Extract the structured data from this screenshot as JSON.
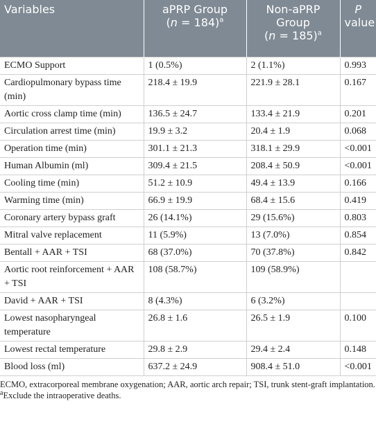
{
  "header": [
    [
      "Variables"
    ],
    [
      "aPRP Group",
      "(",
      "n",
      " = 184)",
      "a"
    ],
    [
      "Non-aPRP",
      "Group",
      "(",
      "n",
      " = 185)",
      "a"
    ],
    [
      "P",
      "value"
    ]
  ],
  "rows": [
    [
      "ECMO Support",
      "1 (0.5%)",
      "2 (1.1%)",
      "0.993"
    ],
    [
      "Cardiopulmonary bypass time (min)",
      "218.4 ± 19.9",
      "221.9 ± 28.1",
      "0.167"
    ],
    [
      "Aortic cross clamp time (min)",
      "136.5 ± 24.7",
      "133.4 ± 21.9",
      "0.201"
    ],
    [
      "Circulation arrest time (min)",
      "19.9 ± 3.2",
      "20.4 ± 1.9",
      "0.068"
    ],
    [
      "Operation time (min)",
      "301.1 ± 21.3",
      "318.1 ± 29.9",
      "<0.001"
    ],
    [
      "Human Albumin (ml)",
      "309.4 ± 21.5",
      "208.4 ± 50.9",
      "<0.001"
    ],
    [
      "Cooling time (min)",
      "51.2 ± 10.9",
      "49.4 ± 13.9",
      "0.166"
    ],
    [
      "Warming time (min)",
      "66.9 ± 19.9",
      "68.4 ± 15.6",
      "0.419"
    ],
    [
      "Coronary artery bypass graft",
      "26 (14.1%)",
      "29 (15.6%)",
      "0.803"
    ],
    [
      "Mitral valve replacement",
      "11 (5.9%)",
      "13 (7.0%)",
      "0.854"
    ],
    [
      "Bentall + AAR + TSI",
      "68 (37.0%)",
      "70 (37.8%)",
      "0.842"
    ],
    [
      "Aortic root reinforcement + AAR + TSI",
      "108 (58.7%)",
      "109 (58.9%)"
    ],
    [
      "David + AAR + TSI",
      "8 (4.3%)",
      "6 (3.2%)"
    ],
    [
      "Lowest nasopharyngeal temperature",
      "26.8 ± 1.6",
      "26.5 ± 1.9",
      "0.100"
    ],
    [
      "Lowest rectal temperature",
      "29.8 ± 2.9",
      "29.4 ± 2.4",
      "0.148"
    ],
    [
      "Blood loss (ml)",
      "637.2 ± 24.9",
      "908.4 ± 51.0",
      "<0.001"
    ]
  ],
  "footnotes": [
    [
      "ECMO, extracorporeal membrane oxygenation; AAR, aortic arch repair; TSI, trunk stent-graft implantation."
    ],
    [
      "a",
      "Exclude the intraoperative deaths."
    ]
  ]
}
